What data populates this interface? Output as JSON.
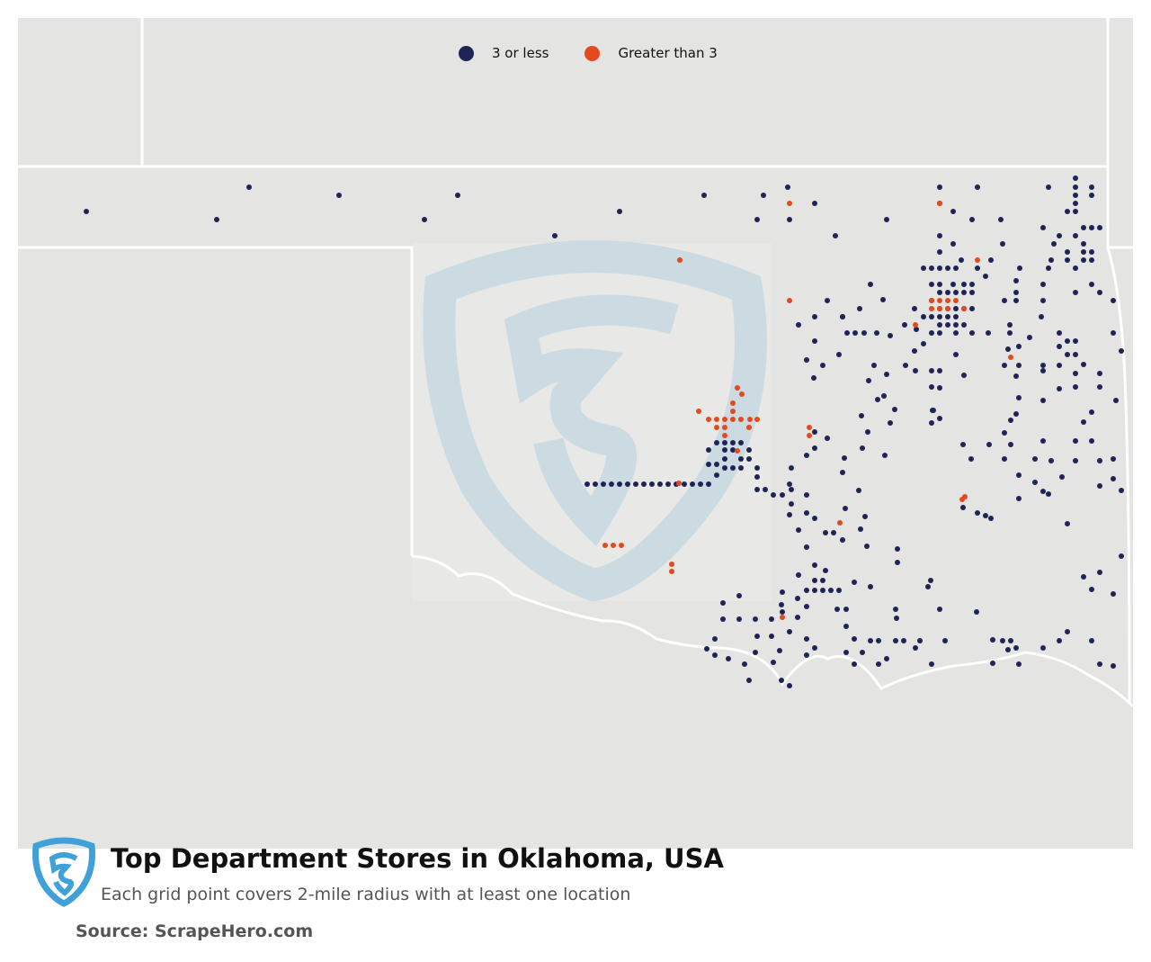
{
  "map": {
    "region": "Oklahoma, USA",
    "background_color": "#e4e4e2",
    "border_color": "#ffffff",
    "watermark": "scrapehero-shield-logo",
    "colors": {
      "low": "#1f2457",
      "high": "#e24a1f"
    }
  },
  "legend": [
    {
      "label": "3 or less",
      "color": "#1f2457"
    },
    {
      "label": "Greater than 3",
      "color": "#e24a1f"
    }
  ],
  "title": "Top Department Stores in Oklahoma, USA",
  "subtitle": "Each grid point covers 2-mile radius with at least one location",
  "source": "Source: ScrapeHero.com",
  "logo": {
    "icon": "scrapehero-s-shield-icon",
    "color": "#3fa1d8"
  },
  "chart_data": {
    "type": "scatter",
    "title": "Top Department Stores in Oklahoma, USA",
    "subtitle": "Each grid point covers 2-mile radius with at least one location",
    "legend": [
      "3 or less",
      "Greater than 3"
    ],
    "legend_position": "top-center",
    "series": [
      {
        "name": "3 or less",
        "color": "#1f2457",
        "note": "grid points distributed statewide, densest around Oklahoma City and Tulsa"
      },
      {
        "name": "Greater than 3",
        "color": "#e24a1f",
        "note": "grid points concentrated around Oklahoma City and Tulsa metro areas"
      }
    ]
  }
}
